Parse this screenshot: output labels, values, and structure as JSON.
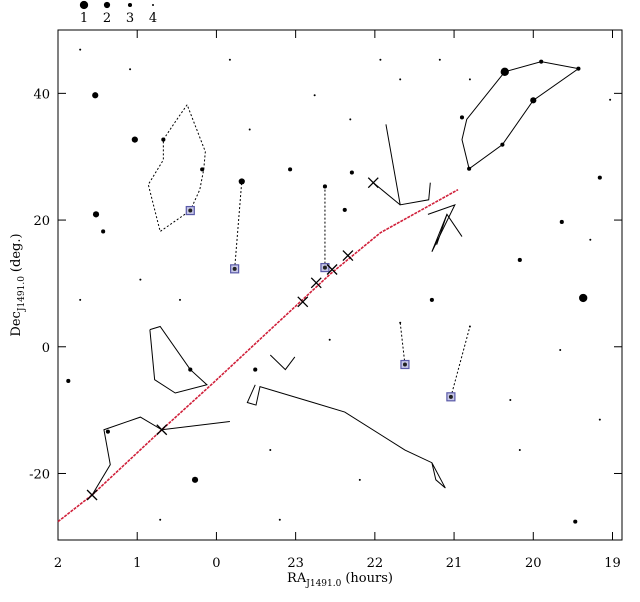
{
  "chart_data": {
    "type": "scatter",
    "x_label": {
      "text": "RA",
      "sub": "J1491.0",
      "unit": "(hours)"
    },
    "y_label": {
      "text": "Dec",
      "sub": "J1491.0",
      "unit": "(deg.)"
    },
    "xlim": [
      26,
      18.88
    ],
    "ylim": [
      -30.5,
      50
    ],
    "xticks": [
      {
        "value": 26,
        "label": "2"
      },
      {
        "value": 25,
        "label": "1"
      },
      {
        "value": 24,
        "label": "0"
      },
      23,
      22,
      21,
      20,
      19
    ],
    "yticks": [
      -20,
      0,
      20,
      40
    ],
    "mag_legend": [
      1,
      2,
      3,
      4
    ],
    "stars": {
      "color": "#000000",
      "x": [
        20.36,
        19.37,
        25.52,
        25.03,
        25.53,
        23.68,
        20.0,
        24.27,
        22.63,
        20.39,
        20.81,
        20.9,
        25.87,
        25.43,
        21.28,
        22.38,
        19.9,
        19.43,
        24.67,
        24.18,
        22.29,
        20.17,
        25.37,
        19.47,
        19.16,
        24.33,
        23.07,
        19.64,
        23.51,
        22.76,
        25.72,
        23.83,
        21.68,
        19.03,
        24.96,
        24.46,
        19.66,
        19.16,
        20.17,
        22.19,
        23.2,
        25.72,
        20.8,
        22.31,
        21.68,
        20.8,
        23.58,
        20.29,
        25.09,
        21.18,
        23.32,
        19.28,
        24.71,
        22.57,
        21.93
      ],
      "y": [
        43.4,
        7.7,
        20.9,
        32.7,
        39.7,
        26.1,
        38.9,
        -21.0,
        25.3,
        31.9,
        28.1,
        36.2,
        -5.4,
        18.2,
        7.4,
        21.6,
        45.0,
        43.9,
        32.7,
        28.0,
        27.5,
        13.7,
        -13.4,
        -27.6,
        26.7,
        -3.6,
        28.0,
        19.7,
        -3.6,
        39.7,
        46.9,
        45.3,
        42.2,
        39.0,
        10.6,
        7.4,
        -0.5,
        -11.5,
        -16.3,
        -21.0,
        -27.3,
        7.4,
        42.2,
        35.9,
        3.8,
        3.2,
        34.3,
        -8.4,
        43.8,
        45.3,
        -16.3,
        16.9,
        -27.3,
        1.1,
        45.3
      ],
      "mag": [
        1,
        1,
        2,
        2,
        2,
        2,
        2,
        2,
        3,
        3,
        3,
        3,
        3,
        3,
        3,
        3,
        3,
        3,
        3,
        3,
        3,
        3,
        3,
        3,
        3,
        3,
        3,
        3,
        3,
        4,
        4,
        4,
        4,
        4,
        4,
        4,
        4,
        4,
        4,
        4,
        4,
        4,
        4,
        4,
        4,
        4,
        4,
        4,
        4,
        4,
        4,
        4,
        4,
        4,
        4
      ]
    },
    "ecliptic": {
      "color": "#d0203a",
      "x": [
        26,
        25.57,
        24.69,
        24.04,
        23.32,
        22.57,
        21.93,
        20.95
      ],
      "y": [
        -27.6,
        -23.4,
        -13.1,
        -5.7,
        2.7,
        11.4,
        18.0,
        24.8
      ]
    },
    "planets": {
      "color": "#000000",
      "x": [
        25.57,
        24.69,
        22.91,
        22.74,
        22.54,
        22.34,
        22.02
      ],
      "y": [
        -23.4,
        -13.1,
        7.1,
        10.1,
        12.2,
        14.4,
        25.9
      ]
    },
    "markers": {
      "color": "#5a5aa8",
      "x": [
        24.33,
        23.77,
        22.63,
        21.62,
        21.04
      ],
      "y": [
        21.5,
        12.3,
        12.5,
        -2.8,
        -7.9
      ]
    },
    "figures": [
      {
        "style": "solid",
        "x": [
          20.36,
          19.9,
          19.43,
          20.0,
          20.39,
          20.81,
          20.9,
          20.84,
          20.36
        ],
        "y": [
          43.4,
          45.0,
          43.9,
          38.9,
          31.9,
          28.1,
          32.7,
          35.9,
          43.4
        ]
      },
      {
        "style": "dotted",
        "x": [
          24.37,
          24.52,
          24.67,
          24.67,
          24.86,
          24.71,
          24.33,
          24.21,
          24.16,
          24.14,
          24.37
        ],
        "y": [
          38.2,
          35.5,
          32.7,
          29.5,
          25.6,
          18.2,
          21.5,
          24.8,
          28.0,
          30.8,
          38.2
        ]
      },
      {
        "style": "solid",
        "x": [
          21.86,
          21.68,
          21.32,
          21.3
        ],
        "y": [
          35.1,
          22.4,
          23.2,
          25.9
        ]
      },
      {
        "style": "solid",
        "x": [
          22.02,
          21.68
        ],
        "y": [
          25.9,
          22.4
        ]
      },
      {
        "style": "solid",
        "x": [
          21.33,
          20.99,
          21.28,
          21.09,
          20.9
        ],
        "y": [
          20.9,
          22.4,
          15.0,
          20.9,
          17.4
        ]
      },
      {
        "style": "solid",
        "x": [
          21.09,
          21.22
        ],
        "y": [
          20.9,
          16.1
        ]
      },
      {
        "style": "solid",
        "x": [
          24.84,
          24.71,
          24.33,
          24.12,
          24.52,
          24.78,
          24.84
        ],
        "y": [
          2.7,
          3.2,
          -3.6,
          -6.0,
          -7.3,
          -5.2,
          2.7
        ]
      },
      {
        "style": "solid",
        "x": [
          23.32,
          23.13,
          23.01
        ],
        "y": [
          -1.3,
          -3.6,
          -1.6
        ]
      },
      {
        "style": "solid",
        "x": [
          23.51,
          23.61,
          23.5,
          23.45,
          22.78,
          22.38,
          21.62,
          21.28,
          21.11,
          21.23,
          21.28
        ],
        "y": [
          -6.0,
          -8.8,
          -9.2,
          -6.3,
          -8.8,
          -10.3,
          -16.3,
          -18.3,
          -22.3,
          -21.0,
          -18.3
        ]
      },
      {
        "style": "solid",
        "x": [
          25.57,
          25.34,
          25.42,
          24.96,
          24.69,
          23.83
        ],
        "y": [
          -23.4,
          -18.6,
          -13.1,
          -11.1,
          -13.1,
          -11.8
        ]
      },
      {
        "style": "dotted",
        "x": [
          23.77,
          23.68
        ],
        "y": [
          12.3,
          26.1
        ]
      },
      {
        "style": "dotted",
        "x": [
          22.63,
          22.63
        ],
        "y": [
          12.5,
          25.3
        ]
      },
      {
        "style": "dotted",
        "x": [
          21.62,
          21.68
        ],
        "y": [
          -2.8,
          3.8
        ]
      },
      {
        "style": "dotted",
        "x": [
          21.04,
          20.8
        ],
        "y": [
          -7.9,
          3.2
        ]
      }
    ]
  }
}
